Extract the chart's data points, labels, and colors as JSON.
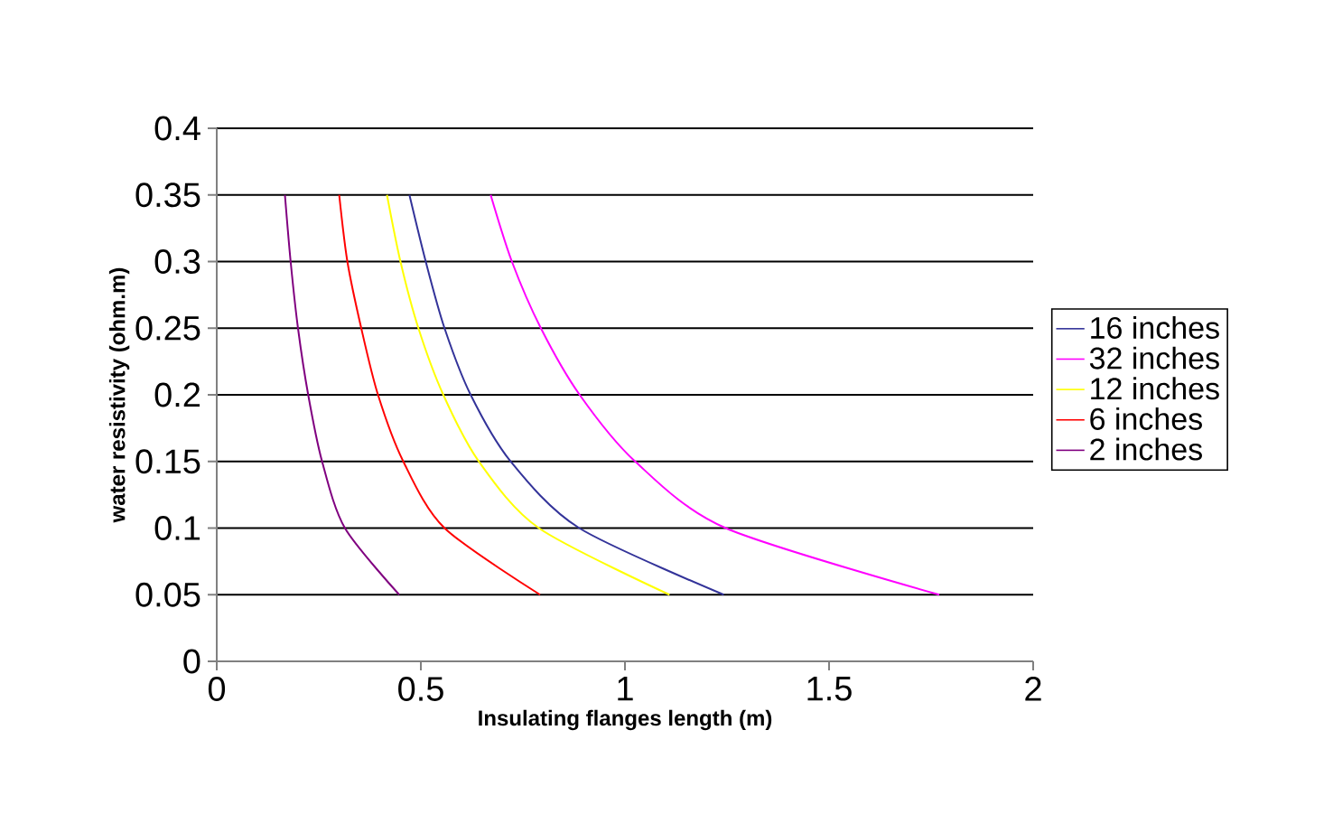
{
  "chart_data": {
    "type": "line",
    "xlabel": "Insulating flanges length (m)",
    "ylabel": "water resistivity (ohm.m)",
    "xlim": [
      0,
      2
    ],
    "ylim": [
      0,
      0.4
    ],
    "xticks": [
      0,
      0.5,
      1,
      1.5,
      2
    ],
    "yticks": [
      0,
      0.05,
      0.1,
      0.15,
      0.2,
      0.25,
      0.3,
      0.35,
      0.4
    ],
    "grid": "y",
    "legend": "right",
    "marker": "none",
    "line_style": "solid",
    "series": [
      {
        "name": "16 inches",
        "color": "#333399",
        "x": [
          0.472,
          0.512,
          0.558,
          0.622,
          0.72,
          0.888,
          1.242
        ],
        "values": [
          0.35,
          0.3,
          0.25,
          0.2,
          0.15,
          0.1,
          0.05
        ]
      },
      {
        "name": "32 inches",
        "color": "#ff00ff",
        "x": [
          0.671,
          0.723,
          0.794,
          0.889,
          1.025,
          1.247,
          1.77
        ],
        "values": [
          0.35,
          0.3,
          0.25,
          0.2,
          0.15,
          0.1,
          0.05
        ]
      },
      {
        "name": "12 inches",
        "color": "#ffff00",
        "x": [
          0.417,
          0.45,
          0.494,
          0.555,
          0.642,
          0.789,
          1.109
        ],
        "values": [
          0.35,
          0.3,
          0.25,
          0.2,
          0.15,
          0.1,
          0.05
        ]
      },
      {
        "name": "6 inches",
        "color": "#ff0000",
        "x": [
          0.3,
          0.32,
          0.354,
          0.395,
          0.457,
          0.558,
          0.792
        ],
        "values": [
          0.35,
          0.3,
          0.25,
          0.2,
          0.15,
          0.1,
          0.05
        ]
      },
      {
        "name": "2 inches",
        "color": "#800080",
        "x": [
          0.167,
          0.181,
          0.199,
          0.224,
          0.258,
          0.314,
          0.447
        ],
        "values": [
          0.35,
          0.3,
          0.25,
          0.2,
          0.15,
          0.1,
          0.05
        ]
      }
    ]
  }
}
